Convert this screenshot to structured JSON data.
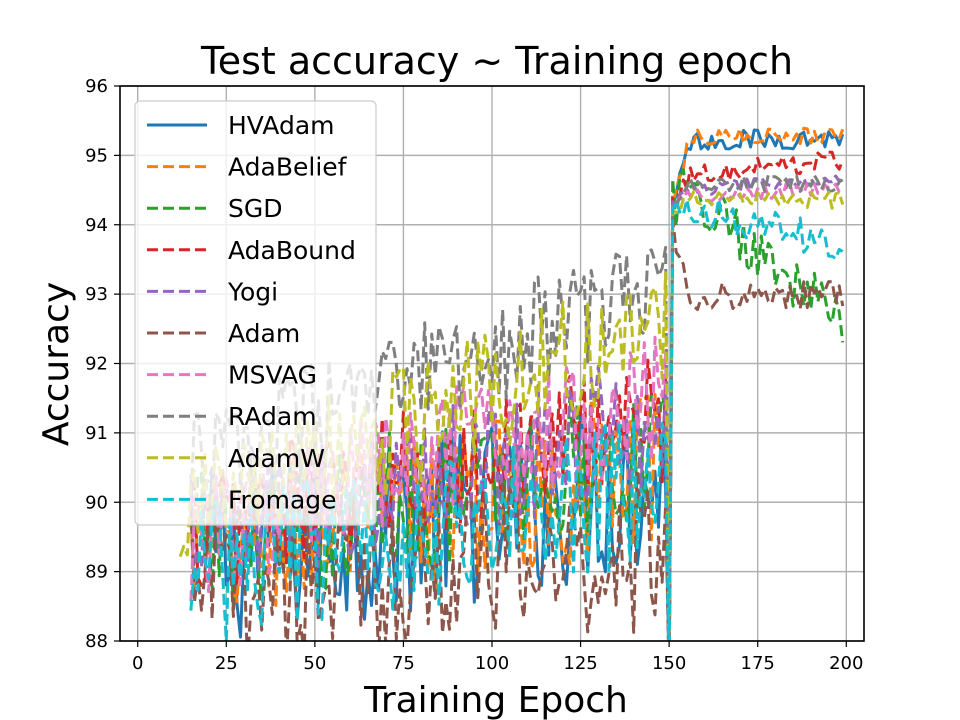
{
  "chart_data": {
    "type": "line",
    "title": "Test accuracy ~ Training epoch",
    "xlabel": "Training Epoch",
    "ylabel": "Accuracy",
    "xlim": [
      -5,
      205
    ],
    "ylim": [
      88,
      96
    ],
    "xticks": [
      0,
      25,
      50,
      75,
      100,
      125,
      150,
      175,
      200
    ],
    "yticks": [
      88,
      89,
      90,
      91,
      92,
      93,
      94,
      95,
      96
    ],
    "grid": true,
    "legend_position": "upper-left",
    "series": [
      {
        "name": "HVAdam",
        "color": "#1f77b4",
        "dash": "solid",
        "phase1": {
          "start": 20,
          "base": 89.2,
          "end": 90.3,
          "amp": 1.3
        },
        "phase2": {
          "start": 151,
          "level": 95.2,
          "end": 95.25,
          "amp": 0.15
        }
      },
      {
        "name": "AdaBelief",
        "color": "#ff7f0e",
        "dash": "dashed",
        "phase1": {
          "start": 15,
          "base": 89.3,
          "end": 90.5,
          "amp": 1.2
        },
        "phase2": {
          "start": 151,
          "level": 95.25,
          "end": 95.3,
          "amp": 0.12
        }
      },
      {
        "name": "SGD",
        "color": "#2ca02c",
        "dash": "dashed",
        "phase1": {
          "start": 15,
          "base": 89.4,
          "end": 90.8,
          "amp": 1.1
        },
        "phase2": {
          "start": 151,
          "level": 94.7,
          "end": 92.6,
          "amp": 0.4
        }
      },
      {
        "name": "AdaBound",
        "color": "#d62728",
        "dash": "dashed",
        "phase1": {
          "start": 15,
          "base": 89.6,
          "end": 91.3,
          "amp": 1.0
        },
        "phase2": {
          "start": 151,
          "level": 94.7,
          "end": 94.95,
          "amp": 0.15
        }
      },
      {
        "name": "Yogi",
        "color": "#9467bd",
        "dash": "dashed",
        "phase1": {
          "start": 15,
          "base": 89.6,
          "end": 91.2,
          "amp": 1.0
        },
        "phase2": {
          "start": 151,
          "level": 94.5,
          "end": 94.65,
          "amp": 0.12
        }
      },
      {
        "name": "Adam",
        "color": "#8c564b",
        "dash": "dashed",
        "phase1": {
          "start": 15,
          "base": 88.8,
          "end": 89.3,
          "amp": 1.2
        },
        "phase2": {
          "start": 151,
          "level": 92.95,
          "end": 93.0,
          "amp": 0.2
        }
      },
      {
        "name": "MSVAG",
        "color": "#e377c2",
        "dash": "dashed",
        "phase1": {
          "start": 15,
          "base": 89.5,
          "end": 91.6,
          "amp": 1.0
        },
        "phase2": {
          "start": 151,
          "level": 94.4,
          "end": 94.55,
          "amp": 0.12
        }
      },
      {
        "name": "RAdam",
        "color": "#7f7f7f",
        "dash": "dashed",
        "phase1": {
          "start": 15,
          "base": 90.5,
          "end": 93.2,
          "amp": 0.8
        },
        "phase2": {
          "start": 151,
          "level": 94.6,
          "end": 94.6,
          "amp": 0.12
        }
      },
      {
        "name": "AdamW",
        "color": "#bcbd22",
        "dash": "dashed",
        "phase1": {
          "start": 12,
          "base": 89.8,
          "end": 92.6,
          "amp": 0.9
        },
        "phase2": {
          "start": 151,
          "level": 94.4,
          "end": 94.35,
          "amp": 0.12
        }
      },
      {
        "name": "Fromage",
        "color": "#17becf",
        "dash": "dashed",
        "phase1": {
          "start": 15,
          "base": 89.0,
          "end": 90.2,
          "amp": 1.1
        },
        "phase2": {
          "start": 151,
          "level": 94.3,
          "end": 93.7,
          "amp": 0.25
        }
      }
    ]
  }
}
